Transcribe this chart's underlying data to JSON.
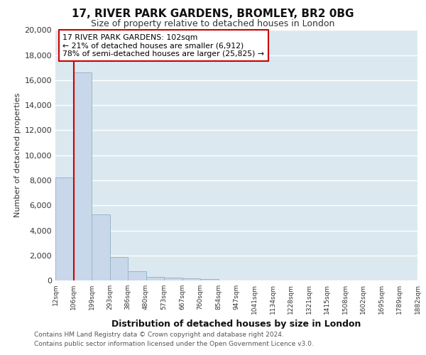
{
  "title1": "17, RIVER PARK GARDENS, BROMLEY, BR2 0BG",
  "title2": "Size of property relative to detached houses in London",
  "xlabel": "Distribution of detached houses by size in London",
  "ylabel": "Number of detached properties",
  "xtick_labels": [
    "12sqm",
    "106sqm",
    "199sqm",
    "293sqm",
    "386sqm",
    "480sqm",
    "573sqm",
    "667sqm",
    "760sqm",
    "854sqm",
    "947sqm",
    "1041sqm",
    "1134sqm",
    "1228sqm",
    "1321sqm",
    "1415sqm",
    "1508sqm",
    "1602sqm",
    "1695sqm",
    "1789sqm",
    "1882sqm"
  ],
  "values": [
    8200,
    16600,
    5300,
    1850,
    750,
    310,
    200,
    160,
    130,
    0,
    0,
    0,
    0,
    0,
    0,
    0,
    0,
    0,
    0,
    0
  ],
  "bar_color": "#c8d8ea",
  "bar_edge_color": "#9ab5cc",
  "bg_color": "#dce8f0",
  "grid_color": "#ffffff",
  "property_bin_index": 1,
  "property_line_color": "#cc0000",
  "annotation_line1": "17 RIVER PARK GARDENS: 102sqm",
  "annotation_line2": "← 21% of detached houses are smaller (6,912)",
  "annotation_line3": "78% of semi-detached houses are larger (25,825) →",
  "annotation_box_color": "#cc0000",
  "annotation_fill": "#ffffff",
  "ylim": [
    0,
    20000
  ],
  "yticks": [
    0,
    2000,
    4000,
    6000,
    8000,
    10000,
    12000,
    14000,
    16000,
    18000,
    20000
  ],
  "footnote1": "Contains HM Land Registry data © Crown copyright and database right 2024.",
  "footnote2": "Contains public sector information licensed under the Open Government Licence v3.0.",
  "fig_bg": "#ffffff",
  "title_fontsize": 11,
  "subtitle_fontsize": 9
}
